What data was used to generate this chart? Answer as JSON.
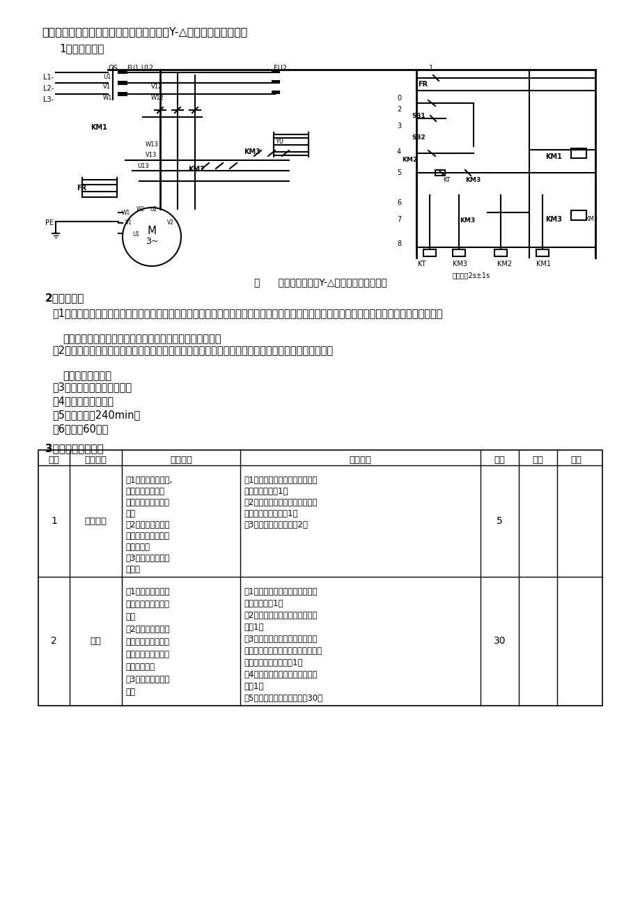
{
  "title_main": "（三）考题二：安装和调试三相异步电动机Y-△降压启动控制电路。",
  "subtitle1": "1、电气原理图",
  "fig_caption": "图      三相异步电动机Y-△降压启动控制电路图",
  "section2_title": "2、考核要求",
  "req1": "（1）按图纸的要求进行正确的安装。元件在配电板上布置合理，安装要正确牢固；布线要求横平竖直，应尽量避免交叉跨越，接线正确、美观。",
  "req2": "（2）按钮盒不固定在配电板上，电源和电动机配线、按钮接线要接到端子排上，要注明引出端子标号。",
  "req3": "（3）正确使用工具和仪表。",
  "req4": "（4）安全文明操作。",
  "req5": "（5）考核时间240min。",
  "req6": "（6）满分60分。",
  "section3_title": "3、配分、评分标准",
  "table_headers": [
    "序号",
    "主要内容",
    "考核要求",
    "评分标准",
    "配分",
    "扣分",
    "得分"
  ],
  "row1_col1": "1",
  "row1_col2": "元件安装",
  "row1_col3": "（1）按图纸的要求,\n正确利用工具和仪\n表，熟练地安装电气\n元件\n（2）元件在配电板\n上布置要合理，安装\n要正确紧固\n（3）按钮不固定在\n配板上",
  "row1_col4": "（1）元件布置不整齐，不均匀、\n不合理，每处扣1分\n（2）元件安装不牢固，安装元件\n时漏装螺钉，每处扣1分\n（3）损坏元件，每处扣2分",
  "row1_col5": "5",
  "row2_col1": "2",
  "row2_col2": "布线",
  "row2_col3": "（1）布接线要求横\n平竖直，接线紧固、\n美观\n（2）电源和电动机\n配线、按钮接线要接\n到端子排上，要注明\n引出端子标号\n（3）导线不能乱线\n敷设",
  "row2_col4": "（1）电动机运行正常，但未按电\n路图接线，扣1分\n（2）布线没有做到横平竖直，每\n处扣1分\n（3）接点松动，接头露铜过长，\n反圈，压绝缘层，标记线号不清楚，\n有遗漏或误标，每处扣1分\n（4）损坏导线绝缘层或线芯，每\n处扣1分\n（5）导线乱线敷设，每处扣30分",
  "row2_col5": "30",
  "bg_color": "#ffffff",
  "text_color": "#000000",
  "bold_sections": true
}
